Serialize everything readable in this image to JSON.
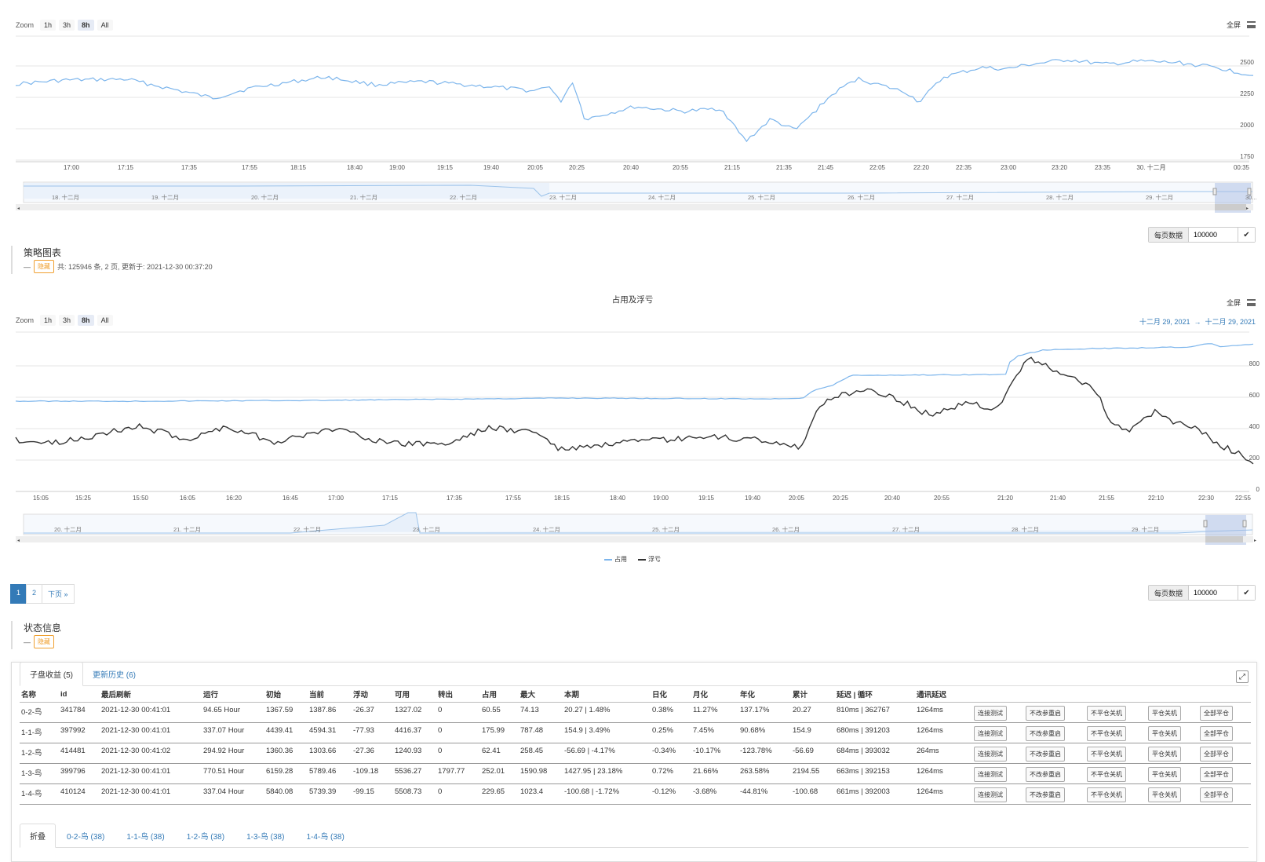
{
  "zoom": {
    "label": "Zoom",
    "buttons": [
      "1h",
      "3h",
      "8h",
      "All"
    ],
    "active": "8h"
  },
  "fullscreen_label": "全屏",
  "chart1": {
    "yticks": [
      "2500",
      "2250",
      "2000",
      "1750"
    ],
    "xticks": [
      "17:00",
      "17:15",
      "17:35",
      "17:55",
      "18:15",
      "18:40",
      "19:00",
      "19:15",
      "19:40",
      "20:05",
      "20:25",
      "20:40",
      "20:55",
      "21:15",
      "21:35",
      "21:45",
      "22:05",
      "22:20",
      "22:35",
      "23:00",
      "23:20",
      "23:35",
      "30. 十二月",
      "00:35"
    ],
    "navigator_labels": [
      "18. 十二月",
      "19. 十二月",
      "20. 十二月",
      "21. 十二月",
      "22. 十二月",
      "23. 十二月",
      "24. 十二月",
      "25. 十二月",
      "26. 十二月",
      "27. 十二月",
      "28. 十二月",
      "29. 十二月",
      "30..."
    ]
  },
  "perpage": {
    "label": "每页数据",
    "value": "100000",
    "ok_icon": "✔"
  },
  "strategy_section": {
    "title": "策略图表",
    "dash": "—",
    "hide_label": "隐藏",
    "info": "共: 125946 条, 2 页, 更新于: 2021-12-30 00:37:20"
  },
  "chart2": {
    "title": "占用及浮亏",
    "range": "十二月 29, 2021  →  十二月 29, 2021",
    "yticks": [
      "800",
      "600",
      "400",
      "200",
      "0"
    ],
    "xticks": [
      "15:05",
      "15:25",
      "15:50",
      "16:05",
      "16:20",
      "16:45",
      "17:00",
      "17:15",
      "17:35",
      "17:55",
      "18:15",
      "18:40",
      "19:00",
      "19:15",
      "19:40",
      "20:05",
      "20:25",
      "20:40",
      "20:55",
      "21:20",
      "21:40",
      "21:55",
      "22:10",
      "22:30",
      "22:55"
    ],
    "navigator_labels": [
      "20. 十二月",
      "21. 十二月",
      "22. 十二月",
      "23. 十二月",
      "24. 十二月",
      "25. 十二月",
      "26. 十二月",
      "27. 十二月",
      "28. 十二月",
      "29. 十二月"
    ],
    "legend": [
      {
        "name": "占用",
        "color": "#7cb5ec"
      },
      {
        "name": "浮亏",
        "color": "#333333"
      }
    ]
  },
  "pager": {
    "pages": [
      "1",
      "2"
    ],
    "next": "下页 »",
    "active": "1"
  },
  "status_section": {
    "title": "状态信息",
    "dash": "—",
    "hide_label": "隐藏"
  },
  "status_panel": {
    "tabs": [
      {
        "label": "子盘收益 (5)",
        "active": true
      },
      {
        "label": "更新历史 (6)",
        "active": false
      }
    ],
    "expand_icon": "⤢",
    "columns": [
      "名称",
      "id",
      "最后刷新",
      "运行",
      "初始",
      "当前",
      "浮动",
      "可用",
      "转出",
      "占用",
      "最大",
      "本期",
      "日化",
      "月化",
      "年化",
      "累计",
      "延迟 | 循环",
      "通讯延迟"
    ],
    "action_buttons": [
      "连接测试",
      "不改参重启",
      "不平仓关机",
      "平仓关机",
      "全部平仓"
    ],
    "rows": [
      [
        "0-2-鸟",
        "341784",
        "2021-12-30 00:41:01",
        "94.65 Hour",
        "1367.59",
        "1387.86",
        "-26.37",
        "1327.02",
        "0",
        "60.55",
        "74.13",
        "20.27 | 1.48%",
        "0.38%",
        "11.27%",
        "137.17%",
        "20.27",
        "810ms | 362767",
        "1264ms"
      ],
      [
        "1-1-鸟",
        "397992",
        "2021-12-30 00:41:01",
        "337.07 Hour",
        "4439.41",
        "4594.31",
        "-77.93",
        "4416.37",
        "0",
        "175.99",
        "787.48",
        "154.9 | 3.49%",
        "0.25%",
        "7.45%",
        "90.68%",
        "154.9",
        "680ms | 391203",
        "1264ms"
      ],
      [
        "1-2-鸟",
        "414481",
        "2021-12-30 00:41:02",
        "294.92 Hour",
        "1360.36",
        "1303.66",
        "-27.36",
        "1240.93",
        "0",
        "62.41",
        "258.45",
        "-56.69 | -4.17%",
        "-0.34%",
        "-10.17%",
        "-123.78%",
        "-56.69",
        "684ms | 393032",
        "264ms"
      ],
      [
        "1-3-鸟",
        "399796",
        "2021-12-30 00:41:01",
        "770.51 Hour",
        "6159.28",
        "5789.46",
        "-109.18",
        "5536.27",
        "1797.77",
        "252.01",
        "1590.98",
        "1427.95 | 23.18%",
        "0.72%",
        "21.66%",
        "263.58%",
        "2194.55",
        "663ms | 392153",
        "1264ms"
      ],
      [
        "1-4-鸟",
        "410124",
        "2021-12-30 00:41:01",
        "337.04 Hour",
        "5840.08",
        "5739.39",
        "-99.15",
        "5508.73",
        "0",
        "229.65",
        "1023.4",
        "-100.68 | -1.72%",
        "-0.12%",
        "-3.68%",
        "-44.81%",
        "-100.68",
        "661ms | 392003",
        "1264ms"
      ]
    ],
    "bottom_tabs": [
      {
        "label": "折叠",
        "active": true
      },
      {
        "label": "0-2-鸟 (38)"
      },
      {
        "label": "1-1-鸟 (38)"
      },
      {
        "label": "1-2-鸟 (38)"
      },
      {
        "label": "1-3-鸟 (38)"
      },
      {
        "label": "1-4-鸟 (38)"
      }
    ]
  },
  "colors": {
    "line_blue": "#7cb5ec",
    "line_black": "#333333",
    "link": "#337ab7",
    "badge": "#f0a030"
  }
}
